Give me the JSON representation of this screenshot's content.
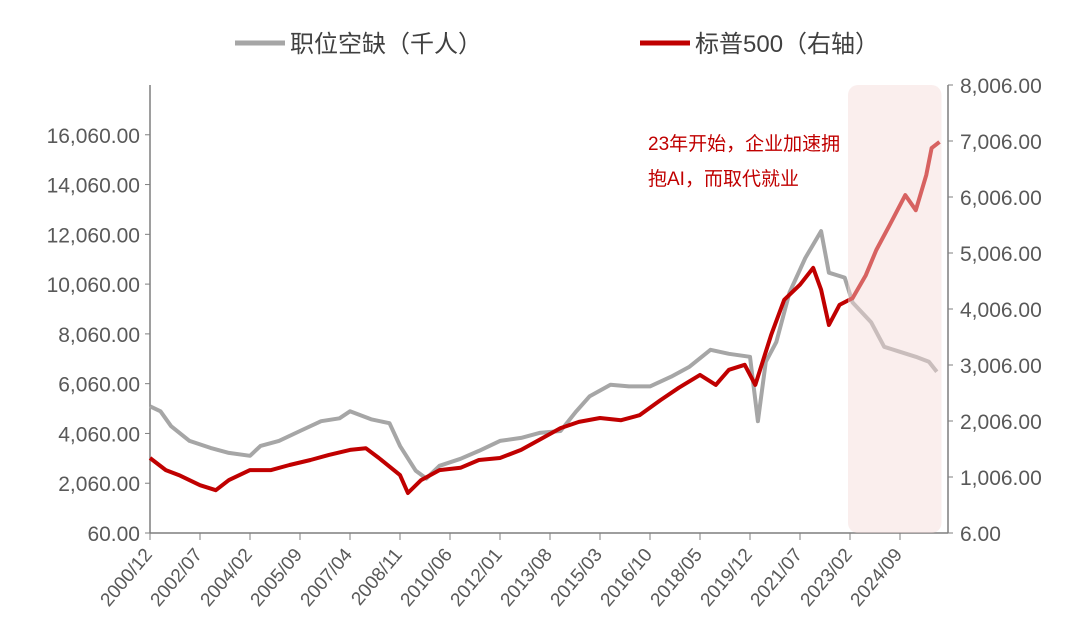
{
  "chart_data": {
    "type": "line",
    "title": "",
    "legend": {
      "placement": "top"
    },
    "grid": false,
    "x_ticks": [
      "2000/12",
      "2002/07",
      "2004/02",
      "2005/09",
      "2007/04",
      "2008/11",
      "2010/06",
      "2012/01",
      "2013/08",
      "2015/03",
      "2016/10",
      "2018/05",
      "2019/12",
      "2021/07",
      "2023/02",
      "2024/09"
    ],
    "y_left": {
      "range": [
        60,
        18060
      ],
      "ticks": [
        "60.00",
        "2,060.00",
        "4,060.00",
        "6,060.00",
        "8,060.00",
        "10,060.00",
        "12,060.00",
        "14,060.00",
        "16,060.00"
      ]
    },
    "y_right": {
      "range": [
        6,
        8006
      ],
      "ticks": [
        "6.00",
        "1,006.00",
        "2,006.00",
        "3,006.00",
        "4,006.00",
        "5,006.00",
        "6,006.00",
        "7,006.00",
        "8,006.00"
      ]
    },
    "highlight": {
      "from": "2023/02",
      "to": "2025/12",
      "color": "#f3d9d6"
    },
    "annotation": [
      "23年开始，企业加速拥",
      "抱AI，而取代就业"
    ],
    "annotation_color": "#c00000",
    "series": [
      {
        "name": "职位空缺（千人）",
        "axis": "left",
        "color": "#a6a6a6",
        "points": [
          [
            "2000/12",
            5150
          ],
          [
            "2001/04",
            4950
          ],
          [
            "2001/08",
            4350
          ],
          [
            "2002/03",
            3760
          ],
          [
            "2002/11",
            3480
          ],
          [
            "2003/06",
            3280
          ],
          [
            "2004/02",
            3160
          ],
          [
            "2004/06",
            3560
          ],
          [
            "2005/01",
            3760
          ],
          [
            "2005/09",
            4160
          ],
          [
            "2006/05",
            4550
          ],
          [
            "2006/12",
            4670
          ],
          [
            "2007/04",
            4950
          ],
          [
            "2007/12",
            4630
          ],
          [
            "2008/07",
            4470
          ],
          [
            "2008/11",
            3560
          ],
          [
            "2009/05",
            2560
          ],
          [
            "2009/09",
            2250
          ],
          [
            "2010/02",
            2760
          ],
          [
            "2010/10",
            3040
          ],
          [
            "2011/05",
            3360
          ],
          [
            "2012/01",
            3760
          ],
          [
            "2012/09",
            3880
          ],
          [
            "2013/04",
            4080
          ],
          [
            "2013/12",
            4160
          ],
          [
            "2014/06",
            4950
          ],
          [
            "2014/11",
            5550
          ],
          [
            "2015/07",
            6020
          ],
          [
            "2016/02",
            5950
          ],
          [
            "2016/10",
            5950
          ],
          [
            "2017/06",
            6340
          ],
          [
            "2018/01",
            6740
          ],
          [
            "2018/09",
            7420
          ],
          [
            "2019/04",
            7260
          ],
          [
            "2019/12",
            7140
          ],
          [
            "2020/03",
            4550
          ],
          [
            "2020/06",
            6940
          ],
          [
            "2020/10",
            7730
          ],
          [
            "2021/03",
            9720
          ],
          [
            "2021/09",
            11110
          ],
          [
            "2022/03",
            12190
          ],
          [
            "2022/06",
            10520
          ],
          [
            "2022/12",
            10320
          ],
          [
            "2023/03",
            9320
          ],
          [
            "2023/10",
            8530
          ],
          [
            "2024/03",
            7540
          ],
          [
            "2024/09",
            7340
          ],
          [
            "2025/03",
            7140
          ],
          [
            "2025/08",
            6940
          ],
          [
            "2025/11",
            6540
          ]
        ]
      },
      {
        "name": "标普500（右轴）",
        "axis": "right",
        "color": "#c00000",
        "points": [
          [
            "2000/12",
            1345
          ],
          [
            "2001/06",
            1130
          ],
          [
            "2001/11",
            1040
          ],
          [
            "2002/07",
            860
          ],
          [
            "2003/01",
            770
          ],
          [
            "2003/06",
            950
          ],
          [
            "2004/02",
            1130
          ],
          [
            "2004/10",
            1130
          ],
          [
            "2005/05",
            1220
          ],
          [
            "2006/01",
            1310
          ],
          [
            "2006/08",
            1400
          ],
          [
            "2007/04",
            1490
          ],
          [
            "2007/10",
            1520
          ],
          [
            "2008/03",
            1345
          ],
          [
            "2008/11",
            1040
          ],
          [
            "2009/02",
            720
          ],
          [
            "2009/07",
            950
          ],
          [
            "2010/02",
            1130
          ],
          [
            "2010/10",
            1170
          ],
          [
            "2011/05",
            1310
          ],
          [
            "2012/01",
            1345
          ],
          [
            "2012/09",
            1490
          ],
          [
            "2013/04",
            1670
          ],
          [
            "2013/12",
            1880
          ],
          [
            "2014/07",
            1990
          ],
          [
            "2015/03",
            2060
          ],
          [
            "2015/11",
            2020
          ],
          [
            "2016/06",
            2110
          ],
          [
            "2017/02",
            2380
          ],
          [
            "2017/09",
            2600
          ],
          [
            "2018/05",
            2830
          ],
          [
            "2018/11",
            2650
          ],
          [
            "2019/04",
            2920
          ],
          [
            "2019/10",
            3010
          ],
          [
            "2020/02",
            2650
          ],
          [
            "2020/08",
            3540
          ],
          [
            "2021/01",
            4170
          ],
          [
            "2021/07",
            4440
          ],
          [
            "2021/12",
            4740
          ],
          [
            "2022/03",
            4350
          ],
          [
            "2022/06",
            3720
          ],
          [
            "2022/10",
            4080
          ],
          [
            "2023/03",
            4200
          ],
          [
            "2023/08",
            4610
          ],
          [
            "2023/12",
            5060
          ],
          [
            "2024/05",
            5500
          ],
          [
            "2024/11",
            6040
          ],
          [
            "2025/03",
            5770
          ],
          [
            "2025/07",
            6400
          ],
          [
            "2025/09",
            6880
          ],
          [
            "2025/12",
            6990
          ]
        ]
      }
    ]
  }
}
